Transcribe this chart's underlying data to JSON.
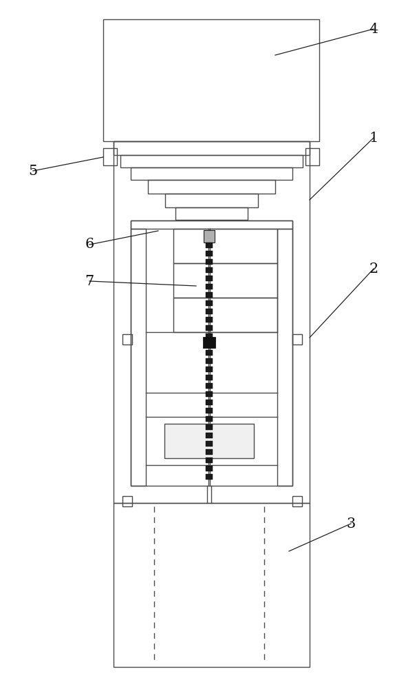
{
  "bg_color": "#ffffff",
  "line_color": "#4a4a4a",
  "dark_color": "#222222",
  "fig_width": 6.09,
  "fig_height": 10.0,
  "lw": 1.0
}
